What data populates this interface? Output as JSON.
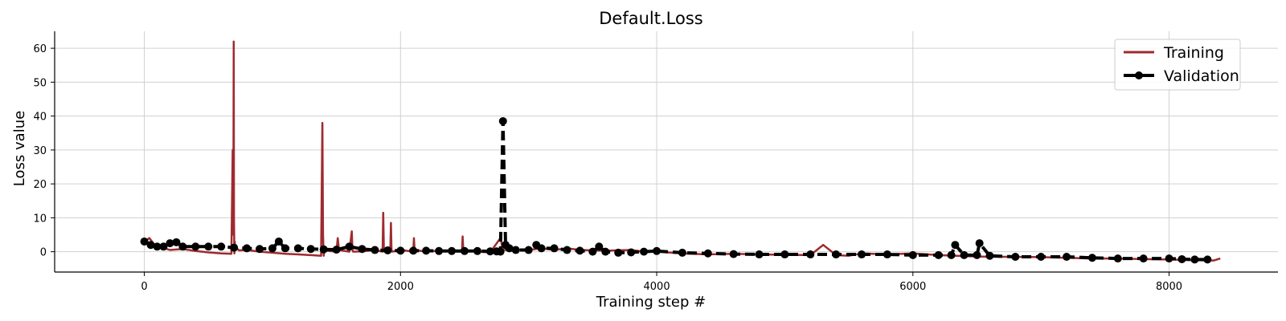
{
  "chart_data": {
    "type": "line",
    "title": "Default.Loss",
    "xlabel": "Training step #",
    "ylabel": "Loss value",
    "xlim": [
      -700,
      8850
    ],
    "ylim": [
      -6,
      65
    ],
    "xticks": [
      0,
      2000,
      4000,
      6000,
      8000
    ],
    "yticks": [
      0,
      10,
      20,
      30,
      40,
      50,
      60
    ],
    "grid": true,
    "legend_position": "top-right",
    "series": [
      {
        "name": "Training",
        "color": "#9e2b2f",
        "style": "solid",
        "x": [
          0,
          40,
          80,
          120,
          200,
          300,
          400,
          500,
          600,
          680,
          690,
          695,
          698,
          700,
          703,
          706,
          710,
          720,
          740,
          800,
          900,
          1000,
          1100,
          1200,
          1300,
          1380,
          1390,
          1395,
          1400,
          1405,
          1410,
          1420,
          1500,
          1510,
          1520,
          1600,
          1620,
          1625,
          1630,
          1700,
          1800,
          1860,
          1865,
          1870,
          1875,
          1900,
          1920,
          1925,
          1930,
          1935,
          2000,
          2100,
          2105,
          2110,
          2200,
          2300,
          2400,
          2480,
          2485,
          2490,
          2600,
          2700,
          2780,
          2800,
          2850,
          2900,
          3000,
          3100,
          3200,
          3300,
          3400,
          3600,
          3800,
          3900,
          4000,
          4200,
          4400,
          4600,
          4800,
          5000,
          5200,
          5300,
          5400,
          5500,
          5600,
          5800,
          6000,
          6200,
          6400,
          6600,
          6800,
          7000,
          7200,
          7400,
          7600,
          7800,
          8000,
          8200,
          8350,
          8400
        ],
        "y": [
          3,
          4,
          2,
          1.5,
          0.5,
          0.8,
          0.2,
          -0.2,
          -0.5,
          -0.6,
          30,
          5,
          62,
          10,
          -0.5,
          3,
          0.5,
          1,
          0.4,
          0.5,
          0,
          -0.3,
          -0.6,
          -0.8,
          -1,
          -1.2,
          38,
          5,
          -1.2,
          0.2,
          0,
          0.3,
          0,
          4,
          0.5,
          0,
          6,
          0.5,
          0,
          0.1,
          0.5,
          0,
          11.5,
          0.5,
          0,
          0.2,
          0,
          8.5,
          0.5,
          0,
          0.5,
          0,
          4,
          0.5,
          0,
          0.3,
          0.1,
          0,
          4.5,
          0.3,
          0,
          -0.2,
          4,
          0.5,
          0.5,
          0.5,
          0.5,
          1,
          0.5,
          1,
          0.5,
          0.3,
          0.5,
          0,
          0,
          -0.5,
          -0.8,
          -0.6,
          -0.8,
          -0.9,
          -1,
          2,
          -1,
          -1.2,
          -0.5,
          -0.8,
          -0.5,
          -1,
          -1.3,
          -1.5,
          -1.5,
          -1.6,
          -1.8,
          -2,
          -2,
          -2.2,
          -2.3,
          -2.5,
          -2.6,
          -2
        ]
      },
      {
        "name": "Validation",
        "color": "#000000",
        "style": "dashed",
        "marker": "circle",
        "x": [
          0,
          50,
          100,
          150,
          200,
          250,
          300,
          400,
          500,
          600,
          700,
          800,
          900,
          1000,
          1050,
          1100,
          1200,
          1300,
          1400,
          1500,
          1600,
          1700,
          1800,
          1900,
          2000,
          2100,
          2200,
          2300,
          2400,
          2500,
          2600,
          2700,
          2750,
          2780,
          2800,
          2820,
          2850,
          2900,
          3000,
          3060,
          3100,
          3200,
          3300,
          3400,
          3500,
          3550,
          3600,
          3700,
          3800,
          3900,
          4000,
          4200,
          4400,
          4600,
          4800,
          5000,
          5200,
          5400,
          5600,
          5800,
          6000,
          6200,
          6300,
          6330,
          6400,
          6500,
          6520,
          6600,
          6800,
          7000,
          7200,
          7400,
          7600,
          7800,
          8000,
          8100,
          8200,
          8300
        ],
        "y": [
          3,
          2,
          1.5,
          1.5,
          2.5,
          2.8,
          1.5,
          1.5,
          1.5,
          1.5,
          1.2,
          1,
          0.8,
          1,
          3,
          1,
          1,
          0.8,
          0.7,
          0.6,
          1.5,
          0.8,
          0.5,
          0.4,
          0.3,
          0.3,
          0.3,
          0.2,
          0.2,
          0.2,
          0.2,
          0.1,
          0.1,
          0,
          38.5,
          2,
          1,
          0.5,
          0.5,
          2,
          1,
          1,
          0.5,
          0.3,
          0,
          1.5,
          0,
          -0.3,
          -0.2,
          0,
          0.2,
          -0.3,
          -0.5,
          -0.7,
          -0.8,
          -0.8,
          -0.8,
          -0.8,
          -0.8,
          -0.8,
          -1,
          -1,
          -1,
          2,
          -1,
          -1,
          2.5,
          -1.2,
          -1.5,
          -1.5,
          -1.5,
          -1.8,
          -2,
          -2,
          -2,
          -2.2,
          -2.3,
          -2.3
        ]
      }
    ]
  }
}
